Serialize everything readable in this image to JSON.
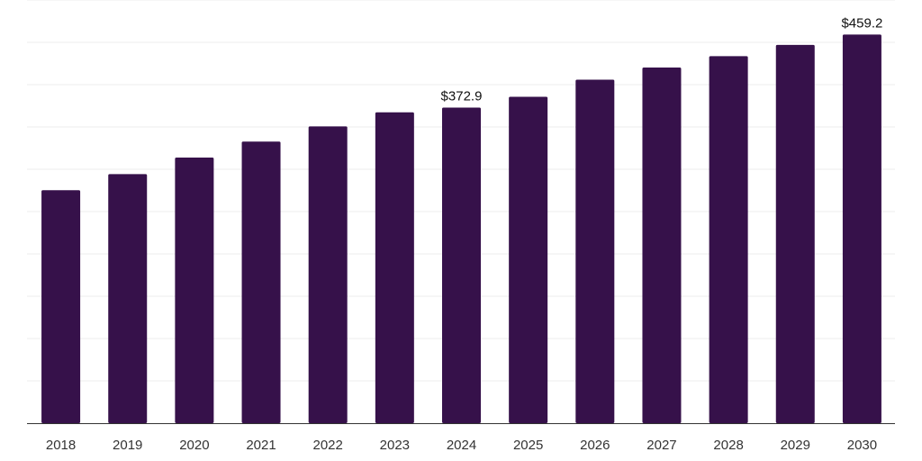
{
  "chart_data": {
    "type": "bar",
    "title": "",
    "xlabel": "",
    "ylabel": "",
    "categories": [
      "2018",
      "2019",
      "2020",
      "2021",
      "2022",
      "2023",
      "2024",
      "2025",
      "2026",
      "2027",
      "2028",
      "2029",
      "2030"
    ],
    "values": [
      275.3,
      294.3,
      313.8,
      332.7,
      350.7,
      367.3,
      372.9,
      385.7,
      405.9,
      420.2,
      433.6,
      446.9,
      459.2
    ],
    "data_labels": {
      "2024": "$372.9",
      "2030": "$459.2"
    },
    "ylim": [
      0,
      500
    ],
    "grid": true,
    "legend": "none",
    "colors": {
      "bar": "#36114a",
      "grid": "#ececec",
      "axis": "#333333"
    }
  }
}
